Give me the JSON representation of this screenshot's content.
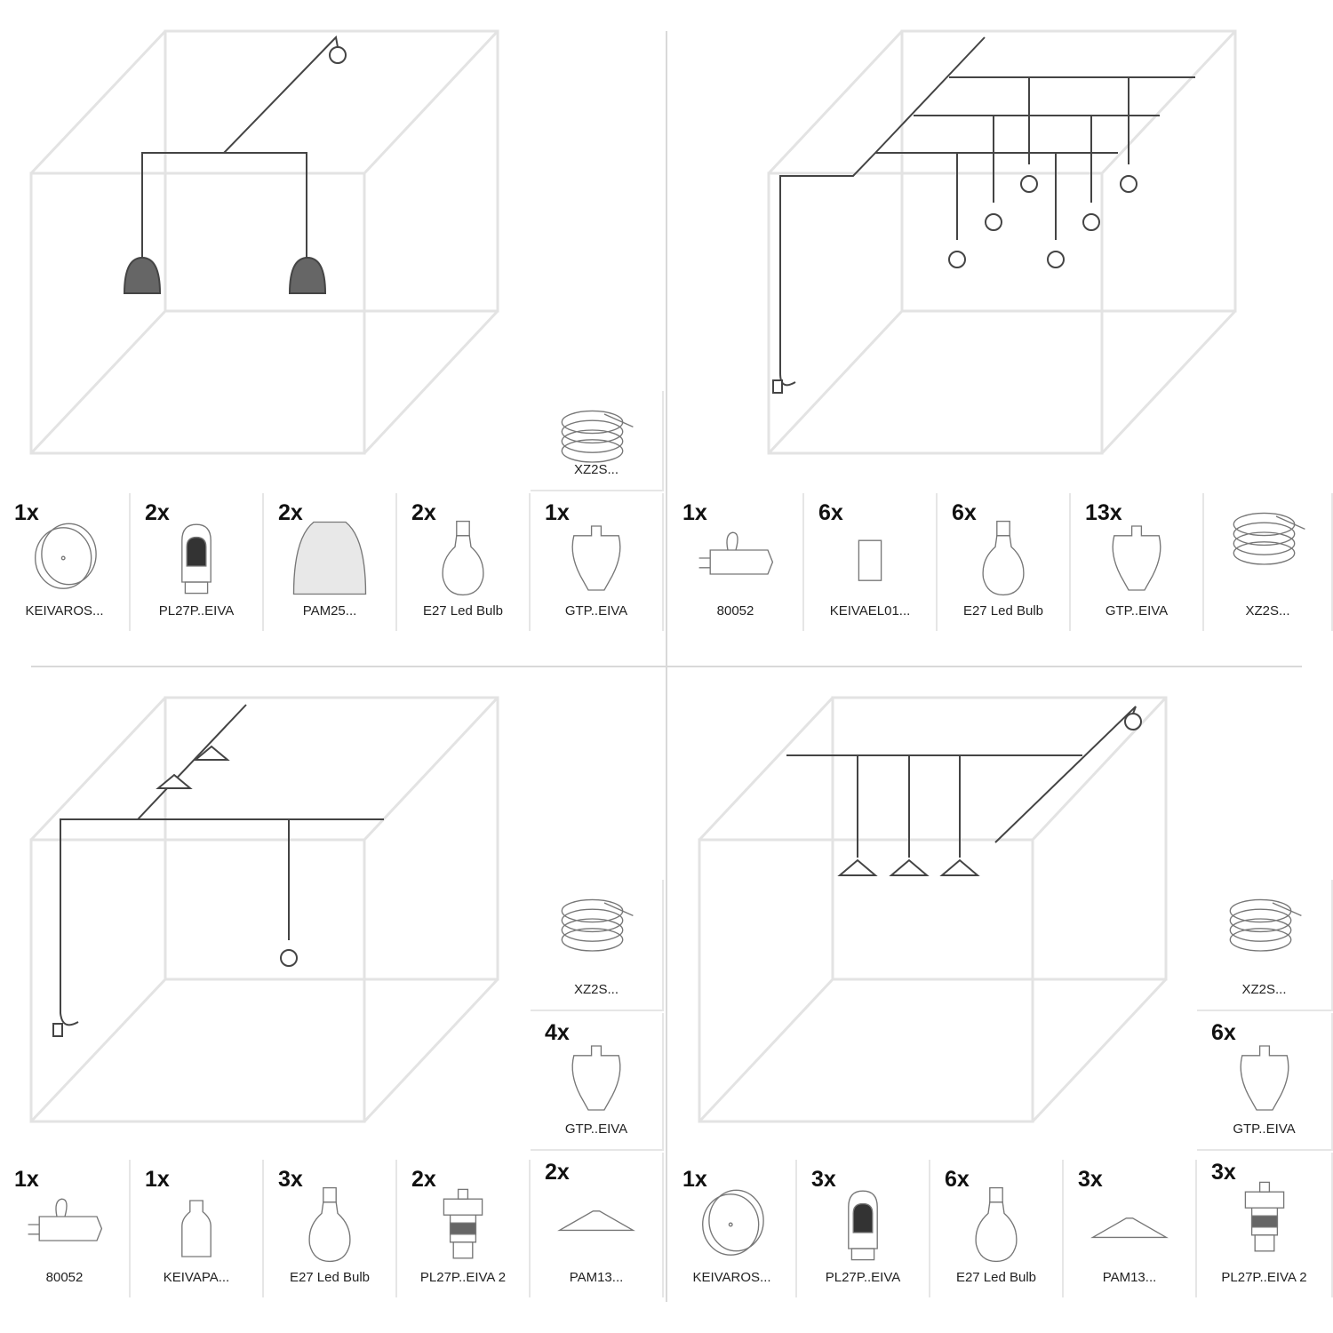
{
  "panels": [
    {
      "items": [
        {
          "qty": "1x",
          "label": "KEIVAROS...",
          "icon": "ceiling-rose"
        },
        {
          "qty": "2x",
          "label": "PL27P..EIVA",
          "icon": "lampholder"
        },
        {
          "qty": "2x",
          "label": "PAM25...",
          "icon": "dome-shade"
        },
        {
          "qty": "2x",
          "label": "E27 Led Bulb",
          "icon": "bulb"
        },
        {
          "qty": "1x",
          "label": "GTP..EIVA",
          "icon": "cord-grip"
        },
        {
          "qty": "",
          "label": "XZ2S...",
          "icon": "cable-coil"
        }
      ]
    },
    {
      "items": [
        {
          "qty": "1x",
          "label": "80052",
          "icon": "plug-switch"
        },
        {
          "qty": "6x",
          "label": "KEIVAEL01...",
          "icon": "sleeve"
        },
        {
          "qty": "6x",
          "label": "E27 Led Bulb",
          "icon": "bulb"
        },
        {
          "qty": "13x",
          "label": "GTP..EIVA",
          "icon": "cord-grip"
        },
        {
          "qty": "",
          "label": "XZ2S...",
          "icon": "cable-coil"
        }
      ]
    },
    {
      "items": [
        {
          "qty": "1x",
          "label": "80052",
          "icon": "plug-switch"
        },
        {
          "qty": "1x",
          "label": "KEIVAPA...",
          "icon": "bottle-holder"
        },
        {
          "qty": "3x",
          "label": "E27 Led Bulb",
          "icon": "bulb"
        },
        {
          "qty": "2x",
          "label": "PL27P..EIVA 2",
          "icon": "lampholder-ring"
        },
        {
          "qty": "",
          "label": "XZ2S...",
          "icon": "cable-coil"
        },
        {
          "qty": "4x",
          "label": "GTP..EIVA",
          "icon": "cord-grip"
        },
        {
          "qty": "2x",
          "label": "PAM13...",
          "icon": "flat-shade"
        }
      ]
    },
    {
      "items": [
        {
          "qty": "1x",
          "label": "KEIVAROS...",
          "icon": "ceiling-rose"
        },
        {
          "qty": "3x",
          "label": "PL27P..EIVA",
          "icon": "lampholder"
        },
        {
          "qty": "6x",
          "label": "E27 Led Bulb",
          "icon": "bulb"
        },
        {
          "qty": "3x",
          "label": "PAM13...",
          "icon": "flat-shade"
        },
        {
          "qty": "",
          "label": "XZ2S...",
          "icon": "cable-coil"
        },
        {
          "qty": "6x",
          "label": "GTP..EIVA",
          "icon": "cord-grip"
        },
        {
          "qty": "3x",
          "label": "PL27P..EIVA 2",
          "icon": "lampholder-ring"
        }
      ]
    }
  ]
}
